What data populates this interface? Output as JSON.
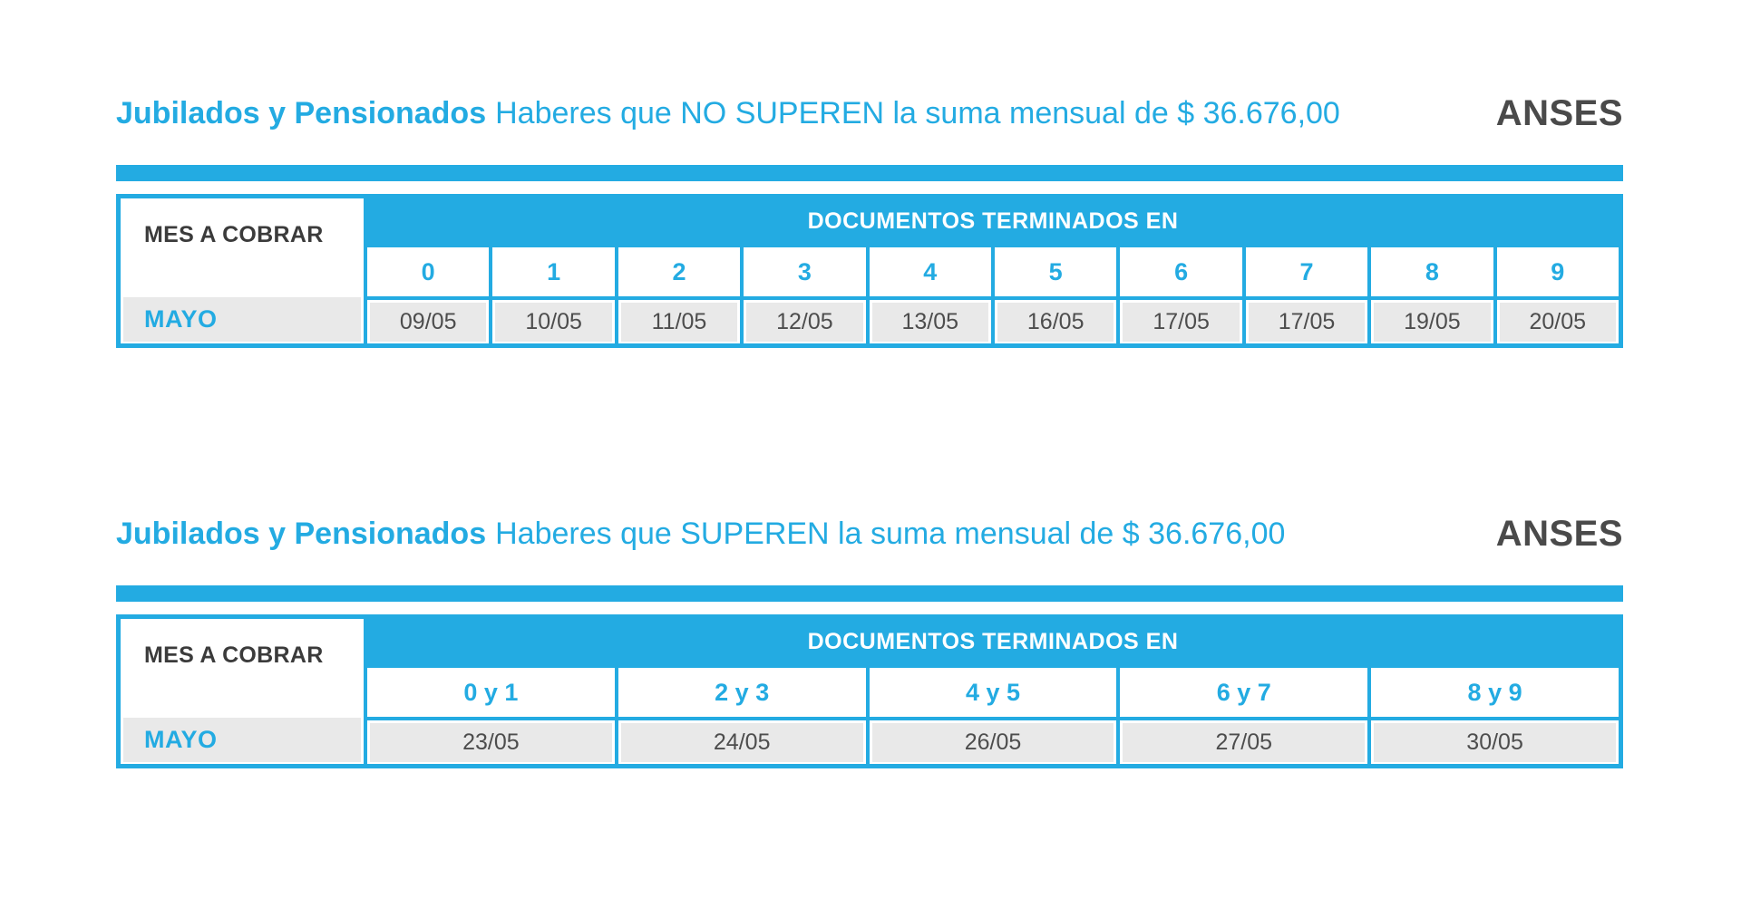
{
  "colors": {
    "accent": "#23abe2",
    "gray_cell": "#e9e9e9",
    "date_text": "#4d4d4d",
    "header_text": "#3b3b3b",
    "logo_text": "#4a4a4a"
  },
  "sections": [
    {
      "title_bold": "Jubilados y Pensionados",
      "title_rest": "Haberes que NO SUPEREN la suma mensual de $ 36.676,00",
      "logo": "ANSES",
      "table": {
        "row_header": "MES A COBRAR",
        "group_header": "DOCUMENTOS TERMINADOS EN",
        "month": "MAYO",
        "columns": [
          "0",
          "1",
          "2",
          "3",
          "4",
          "5",
          "6",
          "7",
          "8",
          "9"
        ],
        "dates": [
          "09/05",
          "10/05",
          "11/05",
          "12/05",
          "13/05",
          "16/05",
          "17/05",
          "17/05",
          "19/05",
          "20/05"
        ]
      }
    },
    {
      "title_bold": "Jubilados y Pensionados",
      "title_rest": "Haberes que SUPEREN la suma mensual de $ 36.676,00",
      "logo": "ANSES",
      "table": {
        "row_header": "MES A COBRAR",
        "group_header": "DOCUMENTOS TERMINADOS EN",
        "month": "MAYO",
        "columns": [
          "0 y 1",
          "2 y 3",
          "4 y 5",
          "6 y 7",
          "8 y 9"
        ],
        "dates": [
          "23/05",
          "24/05",
          "26/05",
          "27/05",
          "30/05"
        ]
      }
    }
  ]
}
